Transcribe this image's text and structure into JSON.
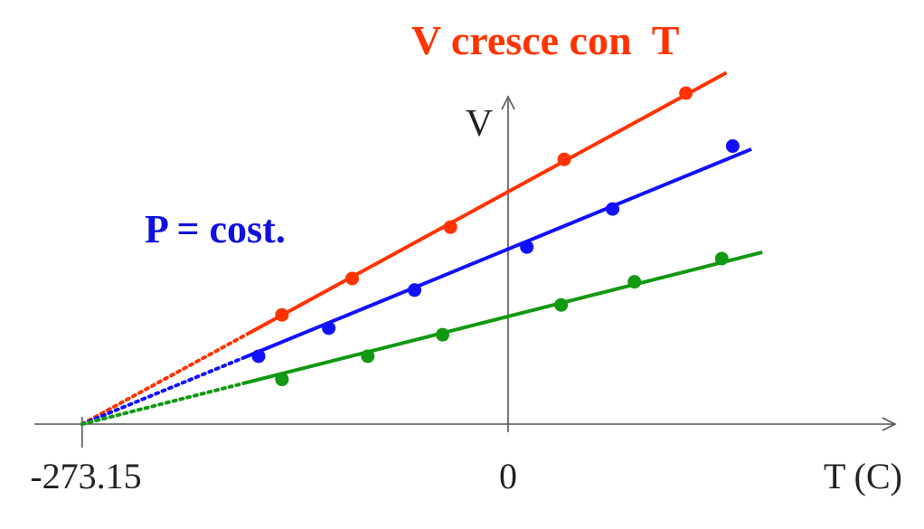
{
  "title": "V cresce con  T",
  "annotation": "P = cost.",
  "colors": {
    "title": "#ff3300",
    "annotation": "#1010e0",
    "axis": "#555555"
  },
  "chart_data": {
    "type": "line",
    "xlabel": "T (C)",
    "ylabel": "V",
    "x_tick_labels": [
      "-273.15",
      "0"
    ],
    "x_ticks": [
      -273.15,
      0
    ],
    "xlim": [
      -300,
      250
    ],
    "ylim": [
      0,
      210
    ],
    "extrapolate_to": -273.15,
    "series": [
      {
        "color": "#ff3300",
        "x": [
          -145,
          -100,
          -37,
          36,
          114
        ],
        "y": [
          66,
          88,
          119,
          160,
          200
        ],
        "line_range": [
          -168,
          140
        ]
      },
      {
        "color": "#1010ff",
        "x": [
          -160,
          -115,
          -60,
          12,
          67,
          144
        ],
        "y": [
          41,
          58,
          81,
          107,
          130,
          168
        ],
        "line_range": [
          -168,
          156
        ]
      },
      {
        "color": "#119911",
        "x": [
          -145,
          -90,
          -42,
          34,
          81,
          137
        ],
        "y": [
          27,
          41,
          54,
          72,
          86,
          100
        ],
        "line_range": [
          -168,
          163
        ]
      }
    ]
  }
}
